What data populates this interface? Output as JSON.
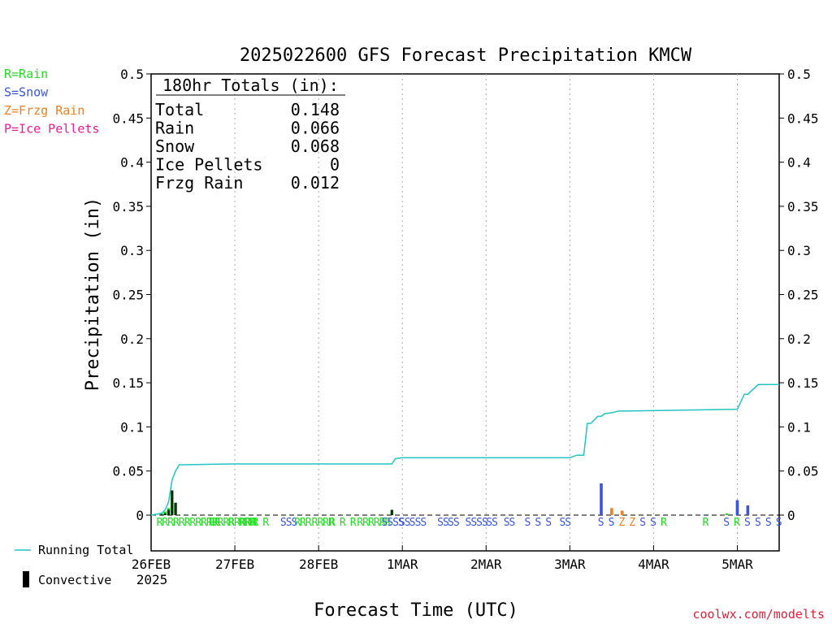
{
  "chart_data": {
    "type": "bar",
    "title": "2025022600 GFS Forecast Precipitation KMCW",
    "xlabel": "Forecast Time (UTC)",
    "ylabel": "Precipitation (in)",
    "ylim": [
      0,
      0.5
    ],
    "yticks": [
      0,
      0.05,
      0.1,
      0.15,
      0.2,
      0.25,
      0.3,
      0.35,
      0.4,
      0.45,
      0.5
    ],
    "ytick_labels": [
      "0",
      "0.05",
      "0.1",
      "0.15",
      "0.2",
      "0.25",
      "0.3",
      "0.35",
      "0.4",
      "0.45",
      "0.5"
    ],
    "xlim_hours": [
      0,
      180
    ],
    "x_tick_labels": [
      {
        "hour": 0,
        "label": "26FEB",
        "sub": "2025"
      },
      {
        "hour": 24,
        "label": "27FEB"
      },
      {
        "hour": 48,
        "label": "28FEB"
      },
      {
        "hour": 72,
        "label": "1MAR"
      },
      {
        "hour": 96,
        "label": "2MAR"
      },
      {
        "hour": 120,
        "label": "3MAR"
      },
      {
        "hour": 144,
        "label": "4MAR"
      },
      {
        "hour": 168,
        "label": "5MAR"
      }
    ],
    "grid": "vertical dotted",
    "totals": {
      "header": "180hr Totals (in):",
      "rows": [
        {
          "label": "Total",
          "value": "0.148"
        },
        {
          "label": "Rain",
          "value": "0.066"
        },
        {
          "label": "Snow",
          "value": "0.068"
        },
        {
          "label": "Ice Pellets",
          "value": "0"
        },
        {
          "label": "Frzg Rain",
          "value": "0.012"
        }
      ]
    },
    "precip_type_legend": [
      {
        "text": "R=Rain",
        "color": "#22dd22"
      },
      {
        "text": "S=Snow",
        "color": "#3a55dd"
      },
      {
        "text": "Z=Frzg Rain",
        "color": "#ee7f22"
      },
      {
        "text": "P=Ice Pellets",
        "color": "#ee1a9a"
      }
    ],
    "series_legend": [
      {
        "name": "Running Total",
        "kind": "line",
        "color": "#22c4c4"
      },
      {
        "name": "Convective",
        "kind": "bar",
        "color": "#000000"
      }
    ],
    "bars": [
      {
        "hour": 3,
        "value": 0.002,
        "color": "#22dd22"
      },
      {
        "hour": 4,
        "value": 0.004,
        "color": "#22dd22"
      },
      {
        "hour": 5,
        "value": 0.008,
        "color": "#22dd22"
      },
      {
        "hour": 6,
        "value": 0.028,
        "color": "#22dd22"
      },
      {
        "hour": 7,
        "value": 0.014,
        "color": "#22dd22"
      },
      {
        "hour": 69,
        "value": 0.006,
        "color": "#22dd22"
      },
      {
        "hour": 129,
        "value": 0.036,
        "color": "#3a55dd"
      },
      {
        "hour": 132,
        "value": 0.008,
        "color": "#ee7f22"
      },
      {
        "hour": 135,
        "value": 0.005,
        "color": "#ee7f22"
      },
      {
        "hour": 165,
        "value": 0.002,
        "color": "#22dd22"
      },
      {
        "hour": 168,
        "value": 0.017,
        "color": "#3a55dd"
      },
      {
        "hour": 171,
        "value": 0.011,
        "color": "#3a55dd"
      }
    ],
    "convective": [
      {
        "hour": 3,
        "value": 0.001
      },
      {
        "hour": 4,
        "value": 0.002
      },
      {
        "hour": 5,
        "value": 0.006
      },
      {
        "hour": 6,
        "value": 0.028
      },
      {
        "hour": 7,
        "value": 0.014
      },
      {
        "hour": 69,
        "value": 0.006
      }
    ],
    "running_total": {
      "x": [
        0,
        3,
        4,
        5,
        6,
        7,
        8,
        24,
        69,
        70,
        72,
        120,
        122,
        124,
        125,
        126,
        128,
        129,
        130,
        132,
        134,
        136,
        168,
        170,
        171,
        174,
        180
      ],
      "y": [
        0,
        0.002,
        0.006,
        0.015,
        0.04,
        0.05,
        0.057,
        0.058,
        0.058,
        0.064,
        0.065,
        0.065,
        0.068,
        0.068,
        0.104,
        0.104,
        0.112,
        0.112,
        0.115,
        0.116,
        0.118,
        0.118,
        0.12,
        0.137,
        0.137,
        0.148,
        0.148
      ]
    },
    "ptype_marks": [
      {
        "hour": 1.5,
        "text": "RRRRRRRRRRRRRRRRRR",
        "color": "#22dd22"
      },
      {
        "hour": 16.5,
        "text": "RR",
        "color": "#22dd22"
      },
      {
        "hour": 22,
        "text": "R",
        "color": "#22dd22"
      },
      {
        "hour": 25,
        "text": "RRR",
        "color": "#22dd22"
      },
      {
        "hour": 29,
        "text": "R",
        "color": "#22dd22"
      },
      {
        "hour": 32,
        "text": "R",
        "color": "#22dd22"
      },
      {
        "hour": 37,
        "text": "SSS",
        "color": "#3a55dd"
      },
      {
        "hour": 41,
        "text": "RRR",
        "color": "#22dd22"
      },
      {
        "hour": 46,
        "text": "RRRR",
        "color": "#22dd22"
      },
      {
        "hour": 51,
        "text": "R",
        "color": "#22dd22"
      },
      {
        "hour": 54,
        "text": "R",
        "color": "#22dd22"
      },
      {
        "hour": 57,
        "text": "R",
        "color": "#22dd22"
      },
      {
        "hour": 59,
        "text": "RRRRRR",
        "color": "#22dd22"
      },
      {
        "hour": 66,
        "text": "SSSS",
        "color": "#3a55dd"
      },
      {
        "hour": 71,
        "text": "SS",
        "color": "#3a55dd"
      },
      {
        "hour": 74,
        "text": "SSS",
        "color": "#3a55dd"
      },
      {
        "hour": 82,
        "text": "SS",
        "color": "#3a55dd"
      },
      {
        "hour": 85,
        "text": "SS",
        "color": "#3a55dd"
      },
      {
        "hour": 90,
        "text": "SSSS",
        "color": "#3a55dd"
      },
      {
        "hour": 96,
        "text": "SS",
        "color": "#3a55dd"
      },
      {
        "hour": 101,
        "text": "SS",
        "color": "#3a55dd"
      },
      {
        "hour": 107,
        "text": "S",
        "color": "#3a55dd"
      },
      {
        "hour": 110,
        "text": "S",
        "color": "#3a55dd"
      },
      {
        "hour": 113,
        "text": "S",
        "color": "#3a55dd"
      },
      {
        "hour": 117,
        "text": "SS",
        "color": "#3a55dd"
      },
      {
        "hour": 128,
        "text": "S",
        "color": "#3a55dd"
      },
      {
        "hour": 131,
        "text": "S",
        "color": "#3a55dd"
      },
      {
        "hour": 134,
        "text": "Z",
        "color": "#ee7f22"
      },
      {
        "hour": 137,
        "text": "Z",
        "color": "#ee7f22"
      },
      {
        "hour": 140,
        "text": "S",
        "color": "#3a55dd"
      },
      {
        "hour": 143,
        "text": "S",
        "color": "#3a55dd"
      },
      {
        "hour": 146,
        "text": "R",
        "color": "#22dd22"
      },
      {
        "hour": 158,
        "text": "R",
        "color": "#22dd22"
      },
      {
        "hour": 164,
        "text": "S",
        "color": "#3a55dd"
      },
      {
        "hour": 167,
        "text": "R",
        "color": "#22dd22"
      },
      {
        "hour": 170,
        "text": "S",
        "color": "#3a55dd"
      },
      {
        "hour": 173,
        "text": "S",
        "color": "#3a55dd"
      },
      {
        "hour": 176,
        "text": "S",
        "color": "#3a55dd"
      },
      {
        "hour": 179,
        "text": "S",
        "color": "#3a55dd"
      }
    ],
    "credit": "coolwx.com/modelts",
    "credit_color": "#e0213a"
  }
}
